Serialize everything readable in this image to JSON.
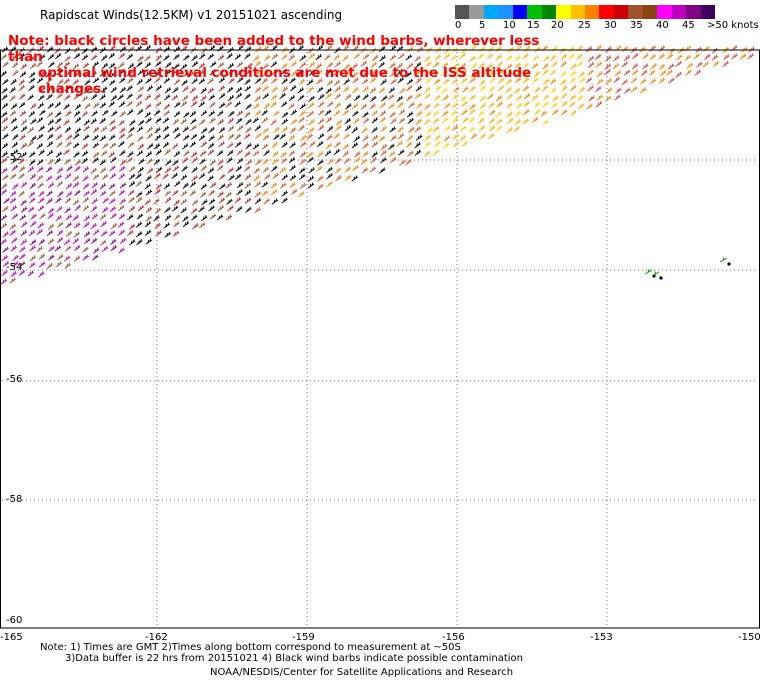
{
  "header": {
    "title": "Rapidscat Winds(12.5KM) v1 20151021 ascending"
  },
  "legend": {
    "unit_label": "knots",
    "ticks": [
      "0",
      "5",
      "10",
      "15",
      "20",
      "25",
      "30",
      "35",
      "40",
      "45",
      ">50 knots"
    ],
    "colors": [
      "#555555",
      "#9a9a9a",
      "#00aaff",
      "#1e90ff",
      "#0000ff",
      "#00c000",
      "#008800",
      "#ffff00",
      "#ffc000",
      "#ff8000",
      "#ff0000",
      "#cc0000",
      "#a0522d",
      "#8b4513",
      "#ff00ff",
      "#c000c0",
      "#800080",
      "#400060"
    ]
  },
  "note": {
    "line1": "Note: black circles have been added to the wind barbs, wherever less than",
    "line2": "optimal wind retrieval conditions are met due to the ISS altitude changes."
  },
  "axes": {
    "y_ticks": [
      "-52",
      "-54",
      "-56",
      "-58",
      "-60"
    ],
    "x_ticks": [
      "-165",
      "-162",
      "-159",
      "-156",
      "-153",
      "-150"
    ]
  },
  "footer": {
    "line1": "Note: 1) Times are GMT 2)Times along bottom correspond to measurement at ~50S",
    "line2": "3)Data buffer is 22 hrs from 20151021 4) Black wind barbs indicate possible contamination",
    "line3": "NOAA/NESDIS/Center for Satellite Applications and Research"
  }
}
